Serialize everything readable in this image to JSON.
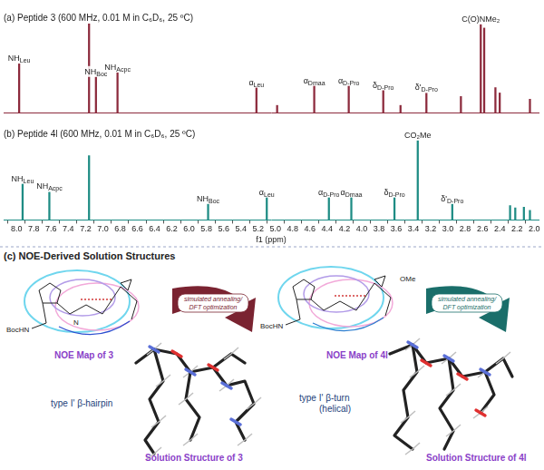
{
  "chart_data": [
    {
      "type": "bar",
      "title": "(a) Peptide 3 (600 MHz, 0.01 M in C₆D₆, 25 ºC)",
      "x": [
        7.97,
        7.16,
        7.08,
        6.83,
        5.22,
        4.98,
        4.55,
        4.15,
        3.75,
        3.55,
        3.25,
        2.85,
        2.62,
        2.58,
        2.45,
        2.4,
        2.05
      ],
      "values": [
        55,
        100,
        40,
        45,
        28,
        8,
        30,
        30,
        25,
        8,
        22,
        18,
        100,
        95,
        28,
        22,
        15
      ],
      "color": "#8c2a3c",
      "xlim": [
        8.15,
        1.95
      ],
      "ylim": [
        0,
        100
      ],
      "grid": false,
      "tick_labels": false,
      "annotations": [
        {
          "x": 7.97,
          "text": "NH",
          "sub": "Leu"
        },
        {
          "x": 7.08,
          "text": "NH",
          "sub": "Boc"
        },
        {
          "x": 6.83,
          "text": "NH",
          "sub": "Acpc"
        },
        {
          "x": 5.22,
          "text": "α",
          "sub": "Leu"
        },
        {
          "x": 4.55,
          "text": "α",
          "sub": "Dmaa"
        },
        {
          "x": 4.15,
          "text": "α",
          "sub": "D-Pro"
        },
        {
          "x": 3.75,
          "text": "δ",
          "sub": "D-Pro"
        },
        {
          "x": 3.25,
          "text": "δ'",
          "sub": "D-Pro"
        },
        {
          "x": 2.62,
          "text": "C(O)NMe₂",
          "sub": ""
        }
      ]
    },
    {
      "type": "bar",
      "title": "(b) Peptide 4l (600 MHz, 0.01 M in C₆D₆, 25 ºC)",
      "x": [
        7.93,
        7.62,
        7.16,
        5.78,
        5.1,
        4.38,
        4.12,
        3.62,
        3.35,
        2.95,
        2.28,
        2.22,
        2.12,
        2.05
      ],
      "values": [
        45,
        35,
        80,
        20,
        28,
        28,
        28,
        28,
        100,
        20,
        18,
        15,
        16,
        12
      ],
      "color": "#1e8c84",
      "xlim": [
        8.15,
        1.95
      ],
      "ylim": [
        0,
        100
      ],
      "xlabel": "f1 (ppm)",
      "xticks": [
        {
          "value": 8,
          "label": "8.0"
        },
        {
          "value": 7.8,
          "label": "7.8"
        },
        {
          "value": 7.6,
          "label": "7.6"
        },
        {
          "value": 7.4,
          "label": "7.4"
        },
        {
          "value": 7.2,
          "label": "7.2"
        },
        {
          "value": 7,
          "label": "7.0"
        },
        {
          "value": 6.8,
          "label": "6.8"
        },
        {
          "value": 6.6,
          "label": "6.6"
        },
        {
          "value": 6.4,
          "label": "6.4"
        },
        {
          "value": 6.2,
          "label": "6.2"
        },
        {
          "value": 6,
          "label": "6.0"
        },
        {
          "value": 5.8,
          "label": "5.8"
        },
        {
          "value": 5.6,
          "label": "5.6"
        },
        {
          "value": 5.4,
          "label": "5.4"
        },
        {
          "value": 5.2,
          "label": "5.2"
        },
        {
          "value": 5,
          "label": "5.0"
        },
        {
          "value": 4.8,
          "label": "4.8"
        },
        {
          "value": 4.6,
          "label": "4.6"
        },
        {
          "value": 4.4,
          "label": "4.4"
        },
        {
          "value": 4.2,
          "label": "4.2"
        },
        {
          "value": 4,
          "label": "4.0"
        },
        {
          "value": 3.8,
          "label": "3.8"
        },
        {
          "value": 3.6,
          "label": "3.6"
        },
        {
          "value": 3.4,
          "label": "3.4"
        },
        {
          "value": 3.2,
          "label": "3.2"
        },
        {
          "value": 3,
          "label": "3.0"
        },
        {
          "value": 2.8,
          "label": "2.8"
        },
        {
          "value": 2.6,
          "label": "2.6"
        },
        {
          "value": 2.4,
          "label": "2.4"
        },
        {
          "value": 2.2,
          "label": "2.2"
        },
        {
          "value": 2,
          "label": "2.0"
        }
      ],
      "grid": false,
      "tick_labels": "x",
      "annotations": [
        {
          "x": 7.93,
          "text": "NH",
          "sub": "Leu"
        },
        {
          "x": 7.62,
          "text": "NH",
          "sub": "Acpc"
        },
        {
          "x": 5.78,
          "text": "NH",
          "sub": "Boc"
        },
        {
          "x": 5.1,
          "text": "α",
          "sub": "Leu"
        },
        {
          "x": 4.38,
          "text": "α",
          "sub": "D-Pro"
        },
        {
          "x": 4.12,
          "text": "α",
          "sub": "Dmaa"
        },
        {
          "x": 3.62,
          "text": "δ",
          "sub": "D-Pro"
        },
        {
          "x": 3.35,
          "text": "CO₂Me",
          "sub": ""
        },
        {
          "x": 2.95,
          "text": "δ'",
          "sub": "D-Pro"
        }
      ]
    }
  ],
  "panel_c": {
    "title": "(c) NOE-Derived Solution Structures",
    "structures": [
      {
        "noe_map_label": "NOE Map of 3",
        "structure_labels": [
          "BocHN",
          "N"
        ],
        "arrow_text": [
          "simulated annealing/",
          "DFT optimization"
        ],
        "fold": [
          "type I' β-hairpin"
        ],
        "solution_label": "Solution Structure of 3"
      },
      {
        "noe_map_label": "NOE Map of 4l",
        "structure_labels": [
          "BocHN",
          "OMe"
        ],
        "arrow_text": [
          "simulated annealing/",
          "DFT optimization"
        ],
        "fold": [
          "type I' β-turn",
          "(helical)"
        ],
        "solution_label": "Solution Structure of 4l"
      }
    ]
  }
}
